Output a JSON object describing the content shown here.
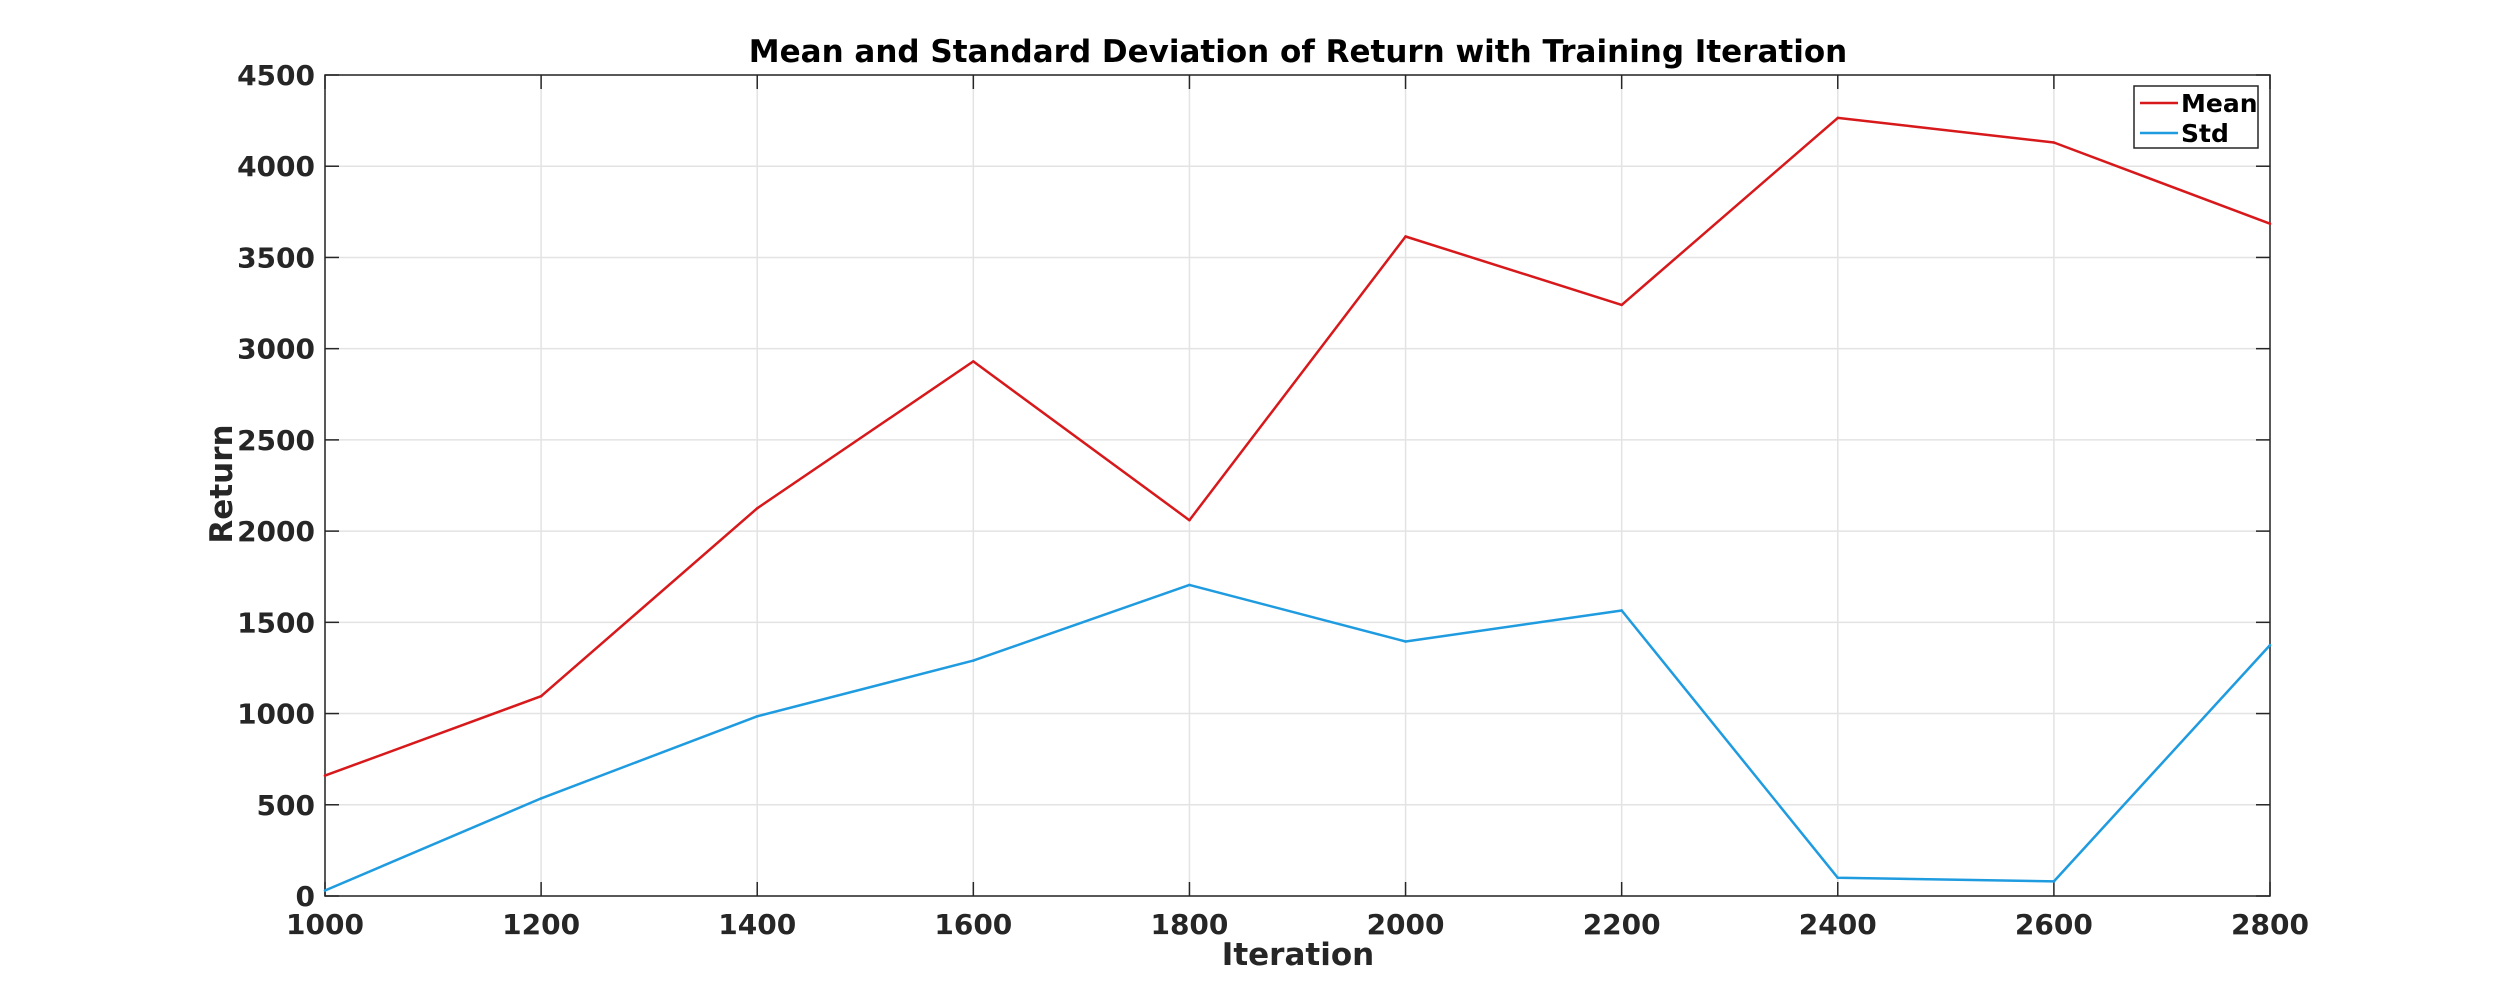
{
  "chart_data": {
    "type": "line",
    "title": "Mean and Standard Deviation of Return with Training Iteration",
    "xlabel": "Iteration",
    "ylabel": "Return",
    "x": [
      1000,
      1200,
      1400,
      1600,
      1800,
      2000,
      2200,
      2400,
      2600,
      2800
    ],
    "xlim": [
      1000,
      2800
    ],
    "ylim": [
      0,
      4500
    ],
    "xticks": [
      1000,
      1200,
      1400,
      1600,
      1800,
      2000,
      2200,
      2400,
      2600,
      2800
    ],
    "yticks": [
      0,
      500,
      1000,
      1500,
      2000,
      2500,
      3000,
      3500,
      4000,
      4500
    ],
    "grid": true,
    "legend_position": "top-right",
    "series": [
      {
        "name": "Mean",
        "color": "#d7191c",
        "values": [
          660,
          1095,
          2125,
          2930,
          2060,
          3615,
          3240,
          4265,
          4130,
          3685
        ]
      },
      {
        "name": "Std",
        "color": "#1f9be0",
        "values": [
          30,
          535,
          985,
          1290,
          1705,
          1395,
          1565,
          100,
          80,
          1375
        ]
      }
    ]
  }
}
